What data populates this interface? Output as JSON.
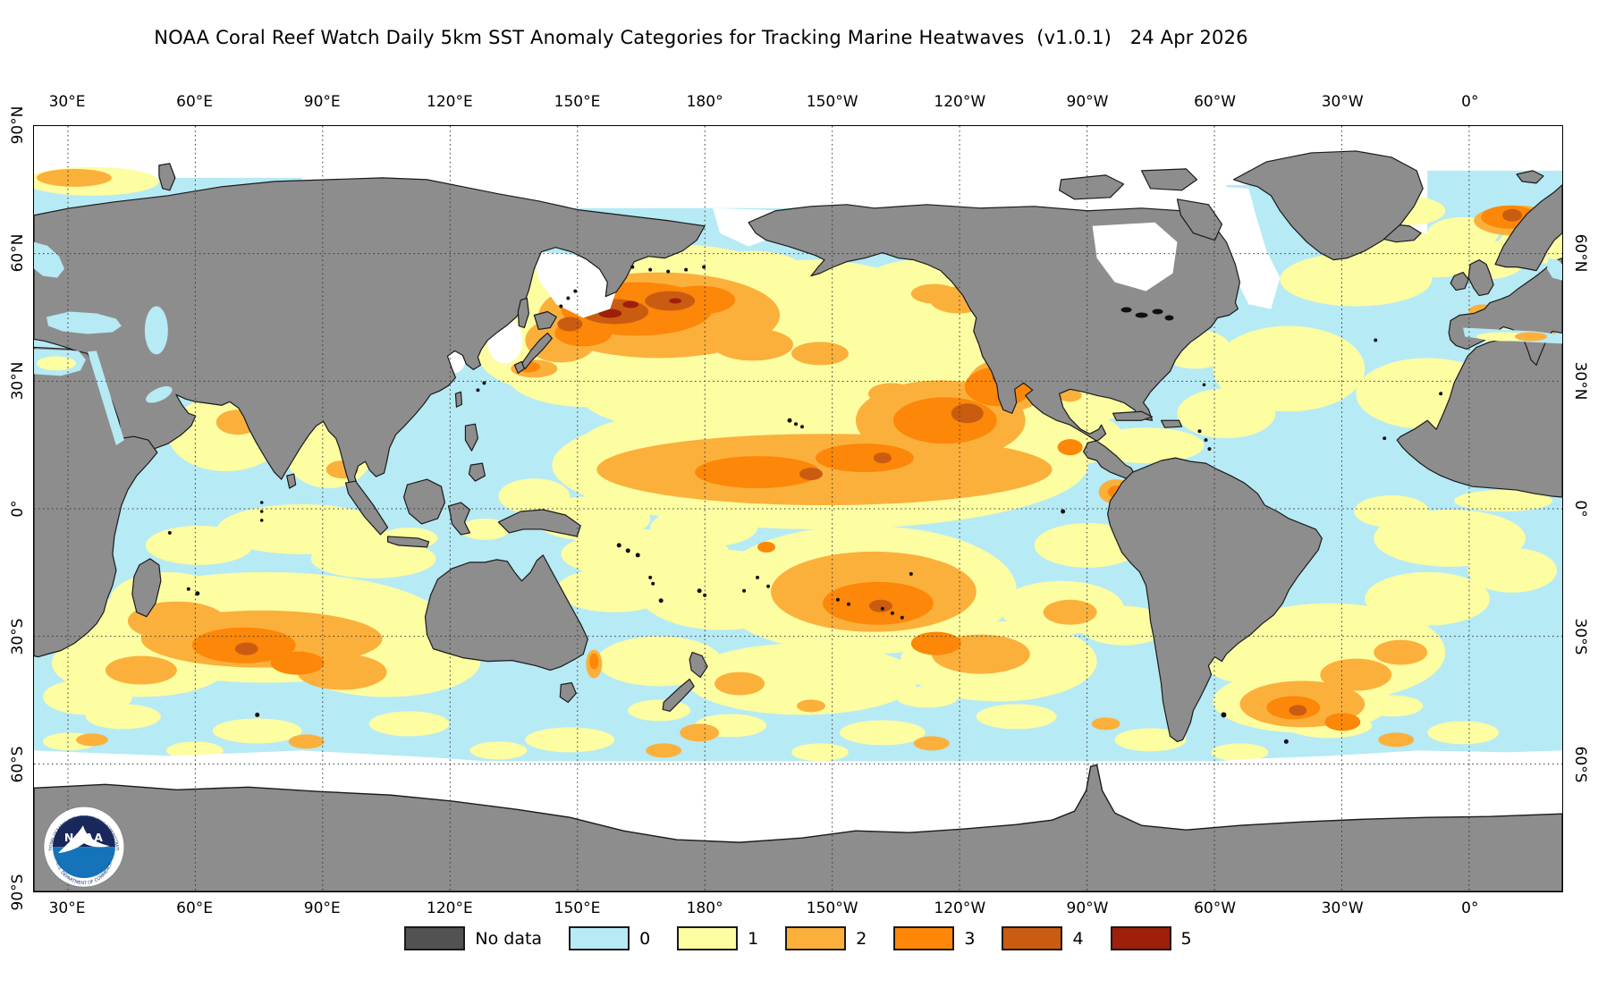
{
  "title": "NOAA Coral Reef Watch Daily 5km SST Anomaly Categories for Tracking Marine Heatwaves  (v1.0.1)   24 Apr 2026",
  "axes": {
    "longitude_labels": [
      "30°E",
      "60°E",
      "90°E",
      "120°E",
      "150°E",
      "180°",
      "150°W",
      "120°W",
      "90°W",
      "60°W",
      "30°W",
      "0°"
    ],
    "latitude_labels_left": [
      "90°N",
      "60°N",
      "30°N",
      "0°",
      "30°S",
      "60°S",
      "90°S"
    ],
    "latitude_labels_right": [
      "60°N",
      "30°N",
      "0°",
      "30°S",
      "60°S"
    ]
  },
  "legend": {
    "entries": [
      {
        "label": "No data",
        "color": "#525252"
      },
      {
        "label": "0",
        "color": "#b6eaf5"
      },
      {
        "label": "1",
        "color": "#fdfda2"
      },
      {
        "label": "2",
        "color": "#fbb03b"
      },
      {
        "label": "3",
        "color": "#fc8708"
      },
      {
        "label": "4",
        "color": "#ca5c11"
      },
      {
        "label": "5",
        "color": "#9e1f0a"
      }
    ]
  },
  "map_colors": {
    "land": "#8d8d8d",
    "coastline": "#1a1a1a",
    "ice_no_data": "#ffffff",
    "grid": "#333333"
  },
  "logo": {
    "agency": "NOAA",
    "rim_top": "NATIONAL OCEANIC AND ATMOSPHERIC ADMINISTRATION",
    "rim_bottom": "U.S. DEPARTMENT OF COMMERCE"
  },
  "chart_data": {
    "type": "map",
    "title": "NOAA Coral Reef Watch Daily 5km SST Anomaly Categories for Tracking Marine Heatwaves",
    "version": "v1.0.1",
    "date": "24 Apr 2026",
    "projection": "equirectangular, Pacific-centered (left edge ~22°E)",
    "longitude_gridlines": [
      "30°E",
      "60°E",
      "90°E",
      "120°E",
      "150°E",
      "180°",
      "150°W",
      "120°W",
      "90°W",
      "60°W",
      "30°W",
      "0°"
    ],
    "latitude_gridlines": [
      "60°N",
      "30°N",
      "0°",
      "30°S",
      "60°S"
    ],
    "categories": [
      "No data",
      "0",
      "1",
      "2",
      "3",
      "4",
      "5"
    ],
    "notable_features": [
      "Large category 2-4 marine heatwave with small category 5 cores in NW Pacific east of Japan (~30-45N, 145E-175W)",
      "Broad category 2-3 band across eastern tropical North Pacific (~5-20N, 175E-105W), strongest (cat 3-4) near Mexico / Baja California coast",
      "Category 2-3 patch in south-central Pacific (~12-27S, 160-120W)",
      "Category 2-3 patches in southern Indian Ocean southeast of Madagascar (~25-40S, 50-100E)",
      "Category 2-3 patches in SW Atlantic east of Argentina (~38-52S)",
      "Category 2-3 patch in Barents Sea near Svalbard and in western Mediterranean",
      "Widespread category 1 (yellow) across mid-latitude oceans; category 0 (light blue) elsewhere",
      "White areas near poles and in Sea of Okhotsk / Hudson Bay indicate ice / missing data; land shown gray"
    ]
  }
}
